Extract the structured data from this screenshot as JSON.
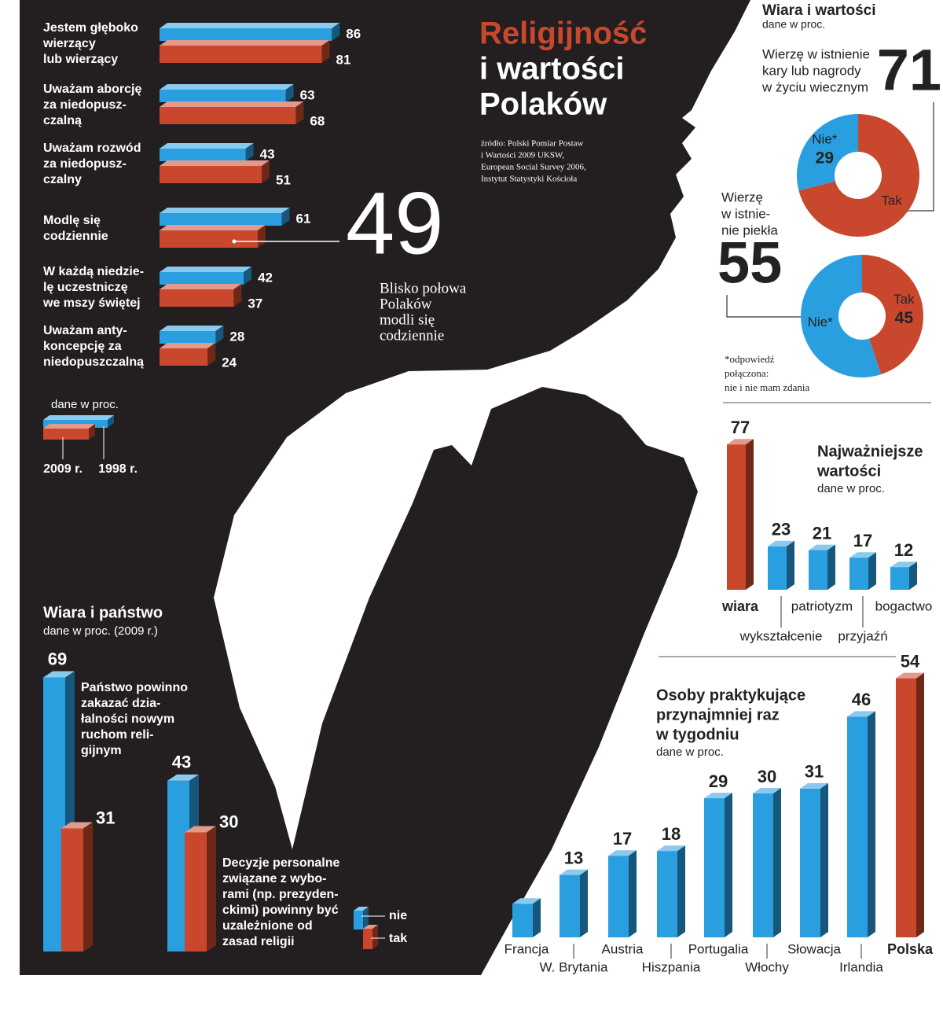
{
  "title": [
    "Religijność",
    "i wartości",
    "Polaków"
  ],
  "source": [
    "źródło: Polski Pomiar Postaw",
    "i Wartości 2009 UKSW,",
    "European Social Survey 2006,",
    "Instytut Statystyki Kościoła"
  ],
  "section": {
    "title": "Wiara i wartości",
    "note": "dane w proc."
  },
  "chart_data": [
    {
      "type": "bar",
      "orientation": "horizontal",
      "note": "dane w proc.",
      "categories": [
        [
          "Jestem głęboko",
          "wierzący",
          "lub wierzący"
        ],
        [
          "Uważam aborcję",
          "za niedopusz-",
          "czalną"
        ],
        [
          "Uważam rozwód",
          "za niedopusz-",
          "czalny"
        ],
        [
          "Modlę się",
          "codziennie"
        ],
        [
          "W każdą niedzie-",
          "lę uczestniczę",
          "we mszy świętej"
        ],
        [
          "Uważam anty-",
          "koncepcję za",
          "niedopuszczalną"
        ]
      ],
      "series": [
        {
          "name": "1998 r.",
          "color": "#2a9fe0",
          "values": [
            86,
            63,
            43,
            61,
            42,
            28
          ]
        },
        {
          "name": "2009 r.",
          "color": "#c9472c",
          "values": [
            81,
            68,
            51,
            49,
            37,
            24
          ]
        }
      ],
      "callout": {
        "series": 1,
        "index": 3,
        "text": [
          "Blisko połowa",
          "Polaków",
          "modli się",
          "codziennie"
        ]
      }
    },
    {
      "type": "pie",
      "label": [
        "Wierzę w istnienie",
        "kary lub nagrody",
        "w życiu wiecznym"
      ],
      "categories": [
        "Nie*",
        "Tak"
      ],
      "colors": [
        "#2a9fe0",
        "#c9472c"
      ],
      "values": [
        29,
        71
      ],
      "highlight": 1
    },
    {
      "type": "pie",
      "label": [
        "Wierzę",
        "w istnie-",
        "nie piekła"
      ],
      "categories": [
        "Nie*",
        "Tak"
      ],
      "colors": [
        "#2a9fe0",
        "#c9472c"
      ],
      "values": [
        55,
        45
      ],
      "highlight": 0,
      "note": [
        "*odpowiedź",
        "połączona:",
        "nie i nie mam zdania"
      ]
    },
    {
      "type": "bar",
      "title": [
        "Najważniejsze",
        "wartości"
      ],
      "note": "dane w proc.",
      "categories": [
        "wiara",
        "wykształcenie",
        "patriotyzm",
        "przyjaźń",
        "bogactwo"
      ],
      "values": [
        77,
        23,
        21,
        17,
        12
      ],
      "colors": [
        "#c9472c",
        "#2a9fe0",
        "#2a9fe0",
        "#2a9fe0",
        "#2a9fe0"
      ],
      "highlight": 0
    },
    {
      "type": "bar",
      "title": [
        "Osoby praktykujące",
        "przynajmniej raz",
        "w tygodniu"
      ],
      "note": "dane w proc.",
      "categories": [
        "Francja",
        "W. Brytania",
        "Austria",
        "Hiszpania",
        "Portugalia",
        "Włochy",
        "Słowacja",
        "Irlandia",
        "Polska"
      ],
      "values": [
        7,
        13,
        17,
        18,
        29,
        30,
        31,
        46,
        54
      ],
      "colors": [
        "#2a9fe0",
        "#2a9fe0",
        "#2a9fe0",
        "#2a9fe0",
        "#2a9fe0",
        "#2a9fe0",
        "#2a9fe0",
        "#2a9fe0",
        "#c9472c"
      ],
      "highlight": 8
    },
    {
      "type": "bar",
      "title": "Wiara i państwo",
      "note": "dane w proc. (2009 r.)",
      "categories": [
        [
          "Państwo powinno",
          "zakazać dzia-",
          "łalności nowym",
          "ruchom reli-",
          "gijnym"
        ],
        [
          "Decyzje personalne",
          "związane z wybo-",
          "rami (np. prezyden-",
          "ckimi) powinny być",
          "uzależnione od",
          "zasad religii"
        ]
      ],
      "series": [
        {
          "name": "nie",
          "color": "#2a9fe0",
          "values": [
            69,
            43
          ]
        },
        {
          "name": "tak",
          "color": "#c9472c",
          "values": [
            31,
            30
          ]
        }
      ]
    }
  ]
}
